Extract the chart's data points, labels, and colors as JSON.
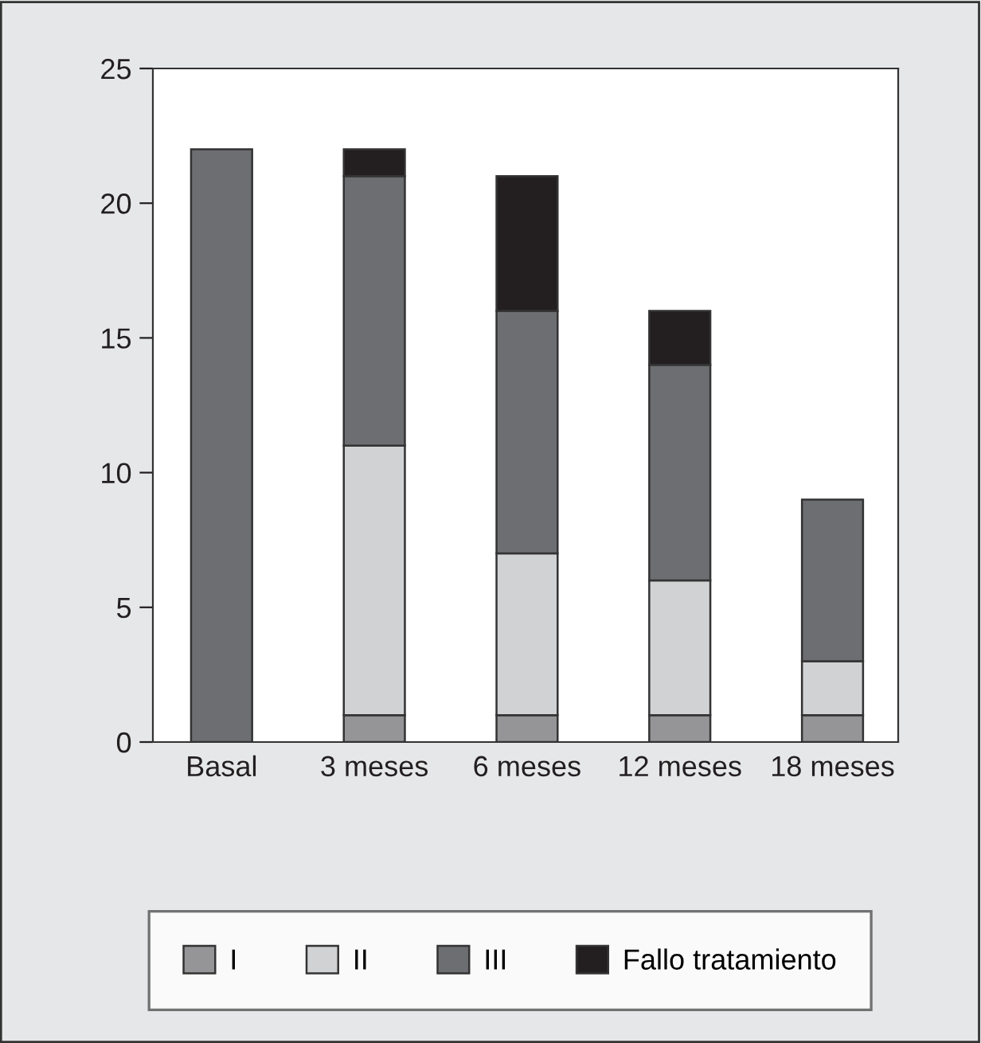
{
  "chart_data": {
    "type": "bar",
    "stacked": true,
    "categories": [
      "Basal",
      "3 meses",
      "6 meses",
      "12 meses",
      "18 meses"
    ],
    "series": [
      {
        "name": "I",
        "color": "#959597",
        "values": [
          null,
          1,
          1,
          1,
          1
        ]
      },
      {
        "name": "II",
        "color": "#d1d2d4",
        "values": [
          null,
          10,
          6,
          5,
          2
        ]
      },
      {
        "name": "III",
        "color": "#6d6e71",
        "values": [
          22,
          10,
          9,
          8,
          6
        ]
      },
      {
        "name": "Fallo tratamiento",
        "color": "#231f20",
        "values": [
          null,
          1,
          5,
          2,
          null
        ]
      }
    ],
    "ylim": [
      0,
      25
    ],
    "yticks": [
      0,
      5,
      10,
      15,
      20,
      25
    ],
    "grid": false,
    "legend": "bottom"
  }
}
